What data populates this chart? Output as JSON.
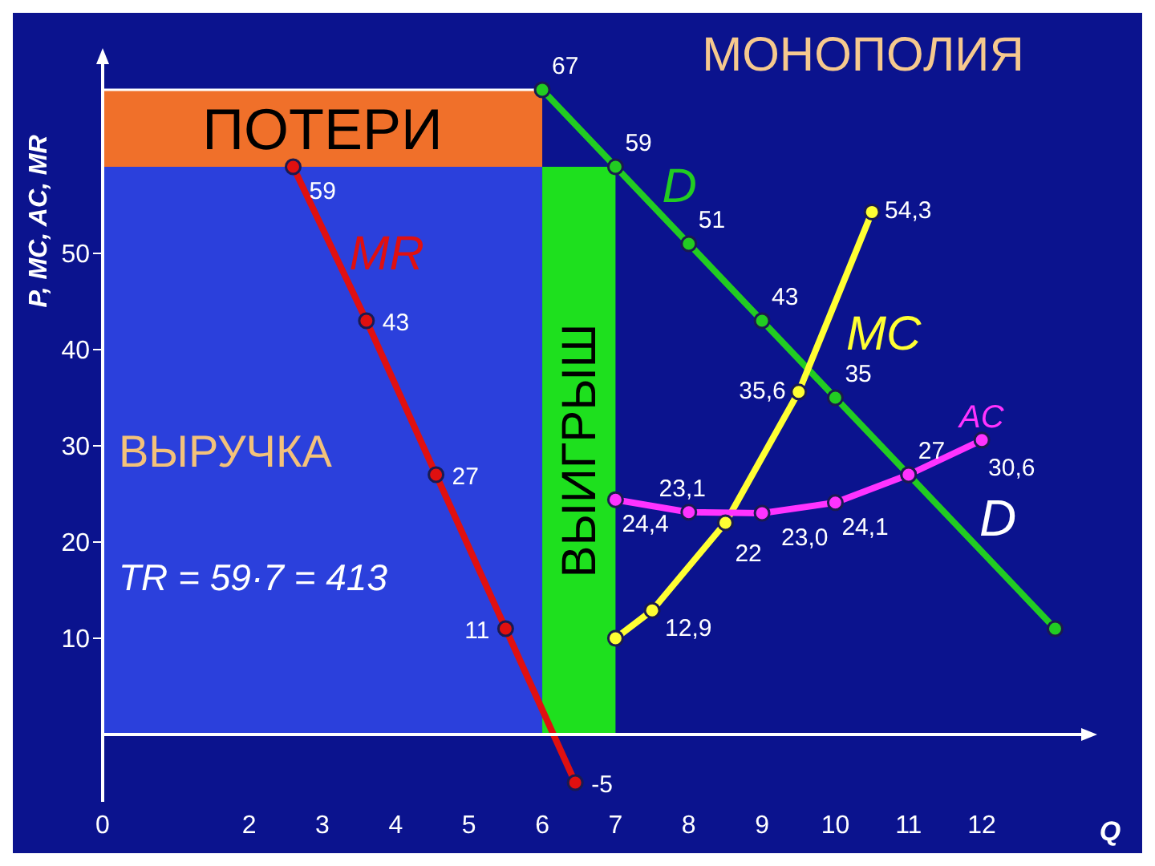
{
  "chart_data": {
    "type": "line",
    "title": "МОНОПОЛИЯ",
    "xlabel": "Q",
    "ylabel": "P, MC, AC, MR",
    "xlim": [
      0,
      13.4
    ],
    "xticks": [
      0,
      2,
      3,
      4,
      5,
      6,
      7,
      8,
      9,
      10,
      11,
      12
    ],
    "ylim": [
      -7,
      70
    ],
    "yticks": [
      10,
      20,
      30,
      40,
      50
    ],
    "series": [
      {
        "type": "area",
        "name": "ПОТЕРИ",
        "color": "#f0702a",
        "x": [
          0,
          6
        ],
        "values": [
          67,
          67
        ]
      },
      {
        "type": "area",
        "name": "ВЫРУЧКА",
        "color": "#2b40dc",
        "x": [
          0,
          6
        ],
        "values": [
          59,
          59
        ]
      },
      {
        "type": "area",
        "name": "ВЫИГРЫШ",
        "color": "#1ee01e",
        "x": [
          6,
          7
        ],
        "values": [
          59,
          59
        ]
      },
      {
        "name": "D",
        "color": "#22cc22",
        "marker": "circle",
        "x": [
          6,
          7,
          8,
          9,
          10,
          11,
          13
        ],
        "values": [
          67,
          59,
          51,
          43,
          35,
          27,
          11
        ],
        "value_labels": [
          "67",
          "59",
          "51",
          "43",
          "35",
          "27",
          null
        ]
      },
      {
        "name": "MR",
        "color": "#e01010",
        "marker": "circle",
        "x": [
          2.6,
          3.6,
          4.55,
          5.5,
          6.45
        ],
        "values": [
          59,
          43,
          27,
          11,
          -5
        ],
        "value_labels": [
          "59",
          "43",
          "27",
          "11",
          "-5"
        ]
      },
      {
        "name": "MC",
        "color": "#ffff33",
        "marker": "circle",
        "x": [
          7,
          7.5,
          8.5,
          9.5,
          10.5
        ],
        "values": [
          10,
          12.9,
          22,
          35.6,
          54.3
        ],
        "value_labels": [
          null,
          "12,9",
          "22",
          "35,6",
          "54,3"
        ]
      },
      {
        "name": "AC",
        "color": "#ff33ff",
        "marker": "circle",
        "x": [
          7,
          8,
          9,
          10,
          11,
          12
        ],
        "values": [
          24.4,
          23.1,
          23.0,
          24.1,
          27,
          30.6
        ],
        "value_labels": [
          "24,4",
          "23,1",
          "23,0",
          "24,1",
          null,
          "30,6"
        ]
      }
    ],
    "annotations": [
      "TR = 59·7 = 413",
      "D"
    ]
  }
}
